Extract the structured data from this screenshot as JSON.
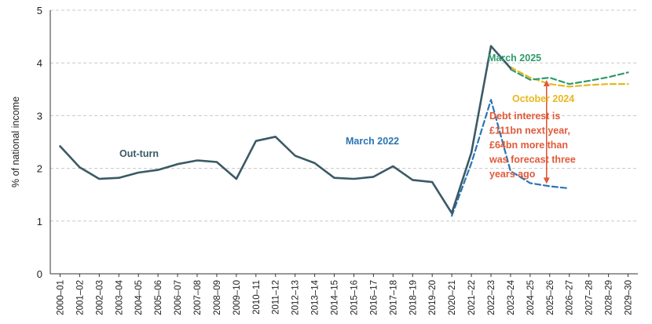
{
  "chart_data": {
    "type": "line",
    "title": "",
    "ylabel": "% of national income",
    "ylim": [
      0,
      5
    ],
    "yticks": [
      0,
      1,
      2,
      3,
      4,
      5
    ],
    "grid": "horizontal-dashed",
    "categories": [
      "2000–01",
      "2001–02",
      "2002–03",
      "2003–04",
      "2004–05",
      "2005–06",
      "2006–07",
      "2007–08",
      "2008–09",
      "2009–10",
      "2010–11",
      "2011–12",
      "2012–13",
      "2013–14",
      "2014–15",
      "2015–16",
      "2016–17",
      "2017–18",
      "2018–19",
      "2019–20",
      "2020–21",
      "2021–22",
      "2022–23",
      "2023–24",
      "2024–25",
      "2025–26",
      "2026–27",
      "2027–28",
      "2028–29",
      "2029–30"
    ],
    "series": [
      {
        "name": "Out-turn",
        "color": "#3a5a66",
        "style": "solid",
        "values": [
          2.42,
          2.02,
          1.8,
          1.82,
          1.92,
          1.97,
          2.08,
          2.15,
          2.12,
          1.8,
          2.52,
          2.6,
          2.24,
          2.1,
          1.82,
          1.8,
          1.84,
          2.04,
          1.78,
          1.74,
          1.15,
          2.3,
          4.32,
          3.9,
          null,
          null,
          null,
          null,
          null,
          null
        ]
      },
      {
        "name": "March 2022",
        "color": "#2c74b3",
        "style": "dashed",
        "values": [
          null,
          null,
          null,
          null,
          null,
          null,
          null,
          null,
          null,
          null,
          null,
          null,
          null,
          null,
          null,
          null,
          null,
          null,
          null,
          null,
          1.1,
          2.1,
          3.3,
          1.95,
          1.72,
          1.66,
          1.62,
          null,
          null,
          null
        ]
      },
      {
        "name": "October 2024",
        "color": "#e8b71e",
        "style": "dashed",
        "values": [
          null,
          null,
          null,
          null,
          null,
          null,
          null,
          null,
          null,
          null,
          null,
          null,
          null,
          null,
          null,
          null,
          null,
          null,
          null,
          null,
          null,
          null,
          null,
          3.92,
          3.72,
          3.6,
          3.55,
          3.58,
          3.6,
          3.6
        ]
      },
      {
        "name": "March 2025",
        "color": "#2e9a6c",
        "style": "dashed",
        "values": [
          null,
          null,
          null,
          null,
          null,
          null,
          null,
          null,
          null,
          null,
          null,
          null,
          null,
          null,
          null,
          null,
          null,
          null,
          null,
          null,
          null,
          null,
          null,
          3.88,
          3.68,
          3.72,
          3.6,
          3.66,
          3.73,
          3.82
        ]
      }
    ],
    "labels": {
      "outturn": "Out-turn",
      "march2022": "March 2022",
      "oct2024": "October 2024",
      "march2025": "March 2025"
    },
    "annotation": {
      "lines": [
        "Debt interest is",
        "£111bn next year,",
        "£64bn more than",
        "was forecast three",
        "years ago"
      ],
      "color": "#e05a3a",
      "arrow_from": 3.66,
      "arrow_to": 1.72
    }
  }
}
